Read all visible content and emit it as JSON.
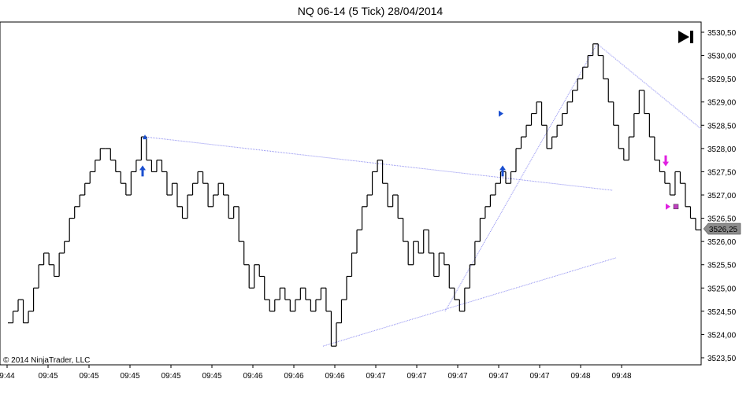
{
  "chart_data": {
    "type": "line",
    "title": "NQ 06-14 (5 Tick)  28/04/2014",
    "copyright": "© 2014 NinjaTrader, LLC",
    "price_marker": "3526,25",
    "ylim": [
      3523.5,
      3530.5
    ],
    "grid": false,
    "y_ticks": [
      "3523,50",
      "3524,00",
      "3524,50",
      "3525,00",
      "3525,50",
      "3526,00",
      "3526,50",
      "3527,00",
      "3527,50",
      "3528,00",
      "3528,50",
      "3529,00",
      "3529,50",
      "3530,00",
      "3530,50"
    ],
    "x_ticks": [
      "9:44",
      "09:45",
      "09:45",
      "09:45",
      "09:45",
      "09:45",
      "09:46",
      "09:46",
      "09:46",
      "09:47",
      "09:47",
      "09:47",
      "09:47",
      "09:47",
      "09:48",
      "09:48"
    ],
    "series": [
      {
        "values": [
          3524.25,
          3524.5,
          3524.75,
          3524.25,
          3524.5,
          3525.0,
          3525.5,
          3525.75,
          3525.5,
          3525.25,
          3525.75,
          3526.0,
          3526.5,
          3526.75,
          3527.0,
          3527.25,
          3527.5,
          3527.75,
          3528.0,
          3528.0,
          3527.75,
          3527.5,
          3527.25,
          3527.0,
          3527.5,
          3527.75,
          3528.25,
          3527.75,
          3527.5,
          3527.75,
          3527.5,
          3527.0,
          3527.25,
          3526.75,
          3526.5,
          3527.0,
          3527.25,
          3527.5,
          3527.25,
          3526.75,
          3527.0,
          3527.25,
          3527.0,
          3526.5,
          3526.75,
          3526.0,
          3525.5,
          3525.0,
          3525.5,
          3525.25,
          3524.75,
          3524.5,
          3524.75,
          3525.0,
          3524.75,
          3524.5,
          3524.75,
          3525.0,
          3524.75,
          3524.5,
          3524.75,
          3525.0,
          3524.5,
          3523.75,
          3524.25,
          3524.75,
          3525.25,
          3525.75,
          3526.25,
          3526.75,
          3527.0,
          3527.5,
          3527.75,
          3527.25,
          3526.75,
          3527.0,
          3526.5,
          3526.0,
          3525.5,
          3526.0,
          3525.75,
          3526.25,
          3525.75,
          3525.25,
          3525.75,
          3525.5,
          3525.0,
          3524.75,
          3524.5,
          3525.0,
          3525.5,
          3526.0,
          3526.5,
          3526.75,
          3527.0,
          3527.25,
          3527.5,
          3527.25,
          3527.5,
          3528.0,
          3528.25,
          3528.5,
          3528.75,
          3529.0,
          3528.5,
          3528.0,
          3528.25,
          3528.5,
          3528.75,
          3529.0,
          3529.25,
          3529.5,
          3529.75,
          3530.0,
          3530.25,
          3530.0,
          3529.5,
          3529.0,
          3528.5,
          3528.0,
          3527.75,
          3528.25,
          3528.75,
          3529.25,
          3528.75,
          3528.25,
          3527.75,
          3527.5,
          3527.25,
          3527.0,
          3527.5,
          3527.25,
          3526.75,
          3526.5,
          3526.25
        ]
      }
    ],
    "trend_lines": [
      {
        "x1": 0.222,
        "y1": 3528.25,
        "x2": 0.944,
        "y2": 3527.1
      },
      {
        "x1": 0.495,
        "y1": 3523.75,
        "x2": 0.944,
        "y2": 3525.65
      },
      {
        "x1": 0.683,
        "y1": 3524.5,
        "x2": 0.92,
        "y2": 3530.25
      },
      {
        "x1": 0.92,
        "y1": 3530.25,
        "x2": 1.0,
        "y2": 3528.42
      }
    ],
    "markers": [
      {
        "type": "long-entry",
        "x": 0.218,
        "value": 3527.5,
        "color": "#1a4fd0"
      },
      {
        "type": "long-entry",
        "x": 0.773,
        "value": 3527.5,
        "color": "#1a4fd0"
      },
      {
        "type": "short-entry",
        "x": 1.023,
        "value": 3527.75,
        "color": "#e020e0"
      },
      {
        "type": "exit-left",
        "x": 0.768,
        "value": 3528.75,
        "color": "#1a4fd0"
      },
      {
        "type": "exit-left",
        "x": 1.024,
        "value": 3526.75,
        "color": "#e020e0"
      },
      {
        "type": "exit-up",
        "x": 0.222,
        "value": 3528.25,
        "color": "#1a4fd0"
      },
      {
        "type": "square",
        "x": 1.04,
        "value": 3526.75,
        "color": "#c040c0"
      }
    ],
    "colors": {
      "price": "#000000",
      "trend_line": "#8c8cf0",
      "long": "#1a4fd0",
      "short": "#e020e0",
      "marker_bg": "#8c8c8c"
    }
  }
}
